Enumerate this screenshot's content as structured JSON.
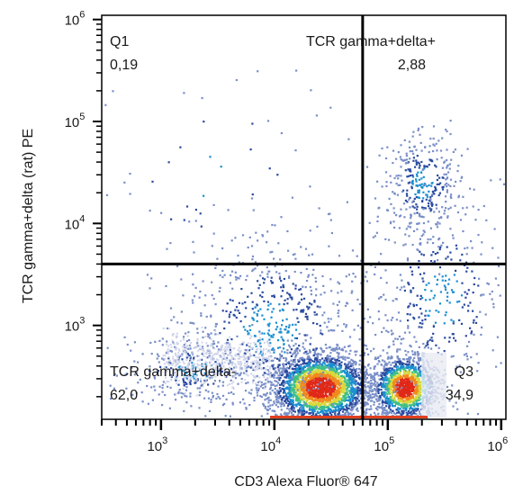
{
  "chart_data": {
    "type": "scatter",
    "title": "",
    "xlabel": "CD3 Alexa Fluor® 647",
    "ylabel": "TCR gamma+delta (rat) PE",
    "x_scale": "log",
    "y_scale": "log",
    "xlim": [
      300,
      1100000
    ],
    "ylim": [
      120,
      1100000
    ],
    "x_ticks": [
      {
        "value": 1000,
        "base": "10",
        "exp": "3"
      },
      {
        "value": 10000,
        "base": "10",
        "exp": "4"
      },
      {
        "value": 100000,
        "base": "10",
        "exp": "5"
      },
      {
        "value": 1000000,
        "base": "10",
        "exp": "6"
      }
    ],
    "y_ticks": [
      {
        "value": 1000,
        "base": "10",
        "exp": "3"
      },
      {
        "value": 10000,
        "base": "10",
        "exp": "4"
      },
      {
        "value": 100000,
        "base": "10",
        "exp": "5"
      },
      {
        "value": 1000000,
        "base": "10",
        "exp": "6"
      }
    ],
    "gates": {
      "x": 60000,
      "y": 4000
    },
    "quadrants": [
      {
        "name": "Q1",
        "value": "0,19",
        "position": "top-left"
      },
      {
        "name": "TCR gamma+delta+",
        "value": "2,88",
        "position": "top-right"
      },
      {
        "name": "TCR gamma+delta-",
        "value": "62,0",
        "position": "bottom-left"
      },
      {
        "name": "Q3",
        "value": "34,9",
        "position": "bottom-right"
      }
    ],
    "populations": [
      {
        "x_center": 25000,
        "y_center": 250,
        "percent": 62.0
      },
      {
        "x_center": 140000,
        "y_center": 250,
        "percent": 34.9
      },
      {
        "x_center": 200000,
        "y_center": 25000,
        "percent": 2.88
      },
      {
        "x_center": 3000,
        "y_center": 30000,
        "percent": 0.19
      }
    ],
    "density_colors": [
      "#cfd5ea",
      "#7a8fc8",
      "#2a4aa0",
      "#1a8fd0",
      "#3fbf8a",
      "#d8d83a",
      "#f08a20",
      "#e02818"
    ],
    "grid": false,
    "legend": "none"
  }
}
